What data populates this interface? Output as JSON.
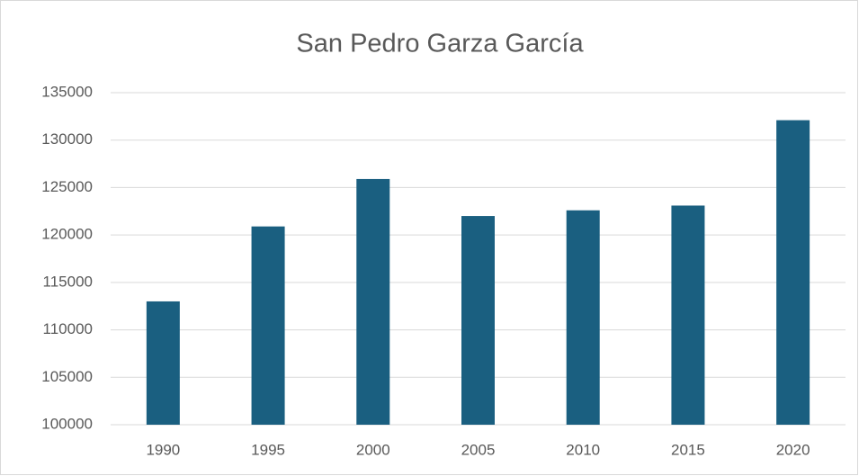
{
  "chart_data": {
    "type": "bar",
    "title": "San Pedro Garza García",
    "categories": [
      "1990",
      "1995",
      "2000",
      "2005",
      "2010",
      "2015",
      "2020"
    ],
    "values": [
      113000,
      120900,
      125900,
      122000,
      122600,
      123100,
      132100
    ],
    "color": "#1a5f80",
    "ylim": [
      100000,
      135000
    ],
    "yticks": [
      100000,
      105000,
      110000,
      115000,
      120000,
      125000,
      130000,
      135000
    ],
    "grid": true
  }
}
